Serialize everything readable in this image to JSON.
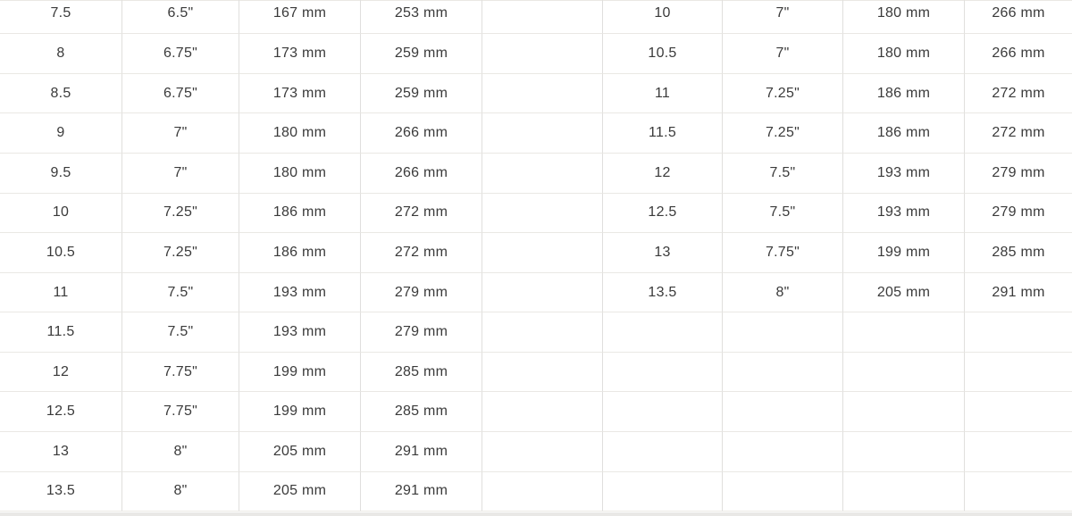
{
  "size_chart": {
    "type": "table",
    "description_note": "",
    "left_table": {
      "rows": [
        [
          "7.5",
          "6.5\"",
          "167 mm",
          "253 mm"
        ],
        [
          "8",
          "6.75\"",
          "173 mm",
          "259 mm"
        ],
        [
          "8.5",
          "6.75\"",
          "173 mm",
          "259 mm"
        ],
        [
          "9",
          "7\"",
          "180 mm",
          "266 mm"
        ],
        [
          "9.5",
          "7\"",
          "180 mm",
          "266 mm"
        ],
        [
          "10",
          "7.25\"",
          "186 mm",
          "272 mm"
        ],
        [
          "10.5",
          "7.25\"",
          "186 mm",
          "272 mm"
        ],
        [
          "11",
          "7.5\"",
          "193 mm",
          "279 mm"
        ],
        [
          "11.5",
          "7.5\"",
          "193 mm",
          "279 mm"
        ],
        [
          "12",
          "7.75\"",
          "199 mm",
          "285 mm"
        ],
        [
          "12.5",
          "7.75\"",
          "199 mm",
          "285 mm"
        ],
        [
          "13",
          "8\"",
          "205 mm",
          "291 mm"
        ],
        [
          "13.5",
          "8\"",
          "205 mm",
          "291 mm"
        ]
      ]
    },
    "right_table": {
      "rows": [
        [
          "10",
          "7\"",
          "180 mm",
          "266 mm"
        ],
        [
          "10.5",
          "7\"",
          "180 mm",
          "266 mm"
        ],
        [
          "11",
          "7.25\"",
          "186 mm",
          "272 mm"
        ],
        [
          "11.5",
          "7.25\"",
          "186 mm",
          "272 mm"
        ],
        [
          "12",
          "7.5\"",
          "193 mm",
          "279 mm"
        ],
        [
          "12.5",
          "7.5\"",
          "193 mm",
          "279 mm"
        ],
        [
          "13",
          "7.75\"",
          "199 mm",
          "285 mm"
        ],
        [
          "13.5",
          "8\"",
          "205 mm",
          "291 mm"
        ],
        [
          "",
          "",
          "",
          ""
        ],
        [
          "",
          "",
          "",
          ""
        ],
        [
          "",
          "",
          "",
          ""
        ],
        [
          "",
          "",
          "",
          ""
        ],
        [
          "",
          "",
          "",
          ""
        ]
      ]
    },
    "row_count": 13
  },
  "colors": {
    "background": "#ffffff",
    "text": "#3a3a3a",
    "border_horizontal": "#eae8e4",
    "border_vertical": "#e0dfdd",
    "bottom_band": "#e9e8e6"
  }
}
